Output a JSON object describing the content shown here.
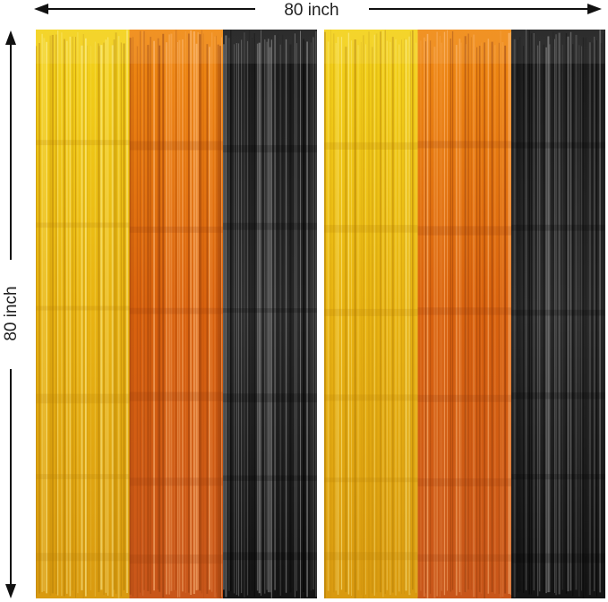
{
  "dimensions": {
    "width_label": "80 inch",
    "height_label": "80 inch"
  }
}
